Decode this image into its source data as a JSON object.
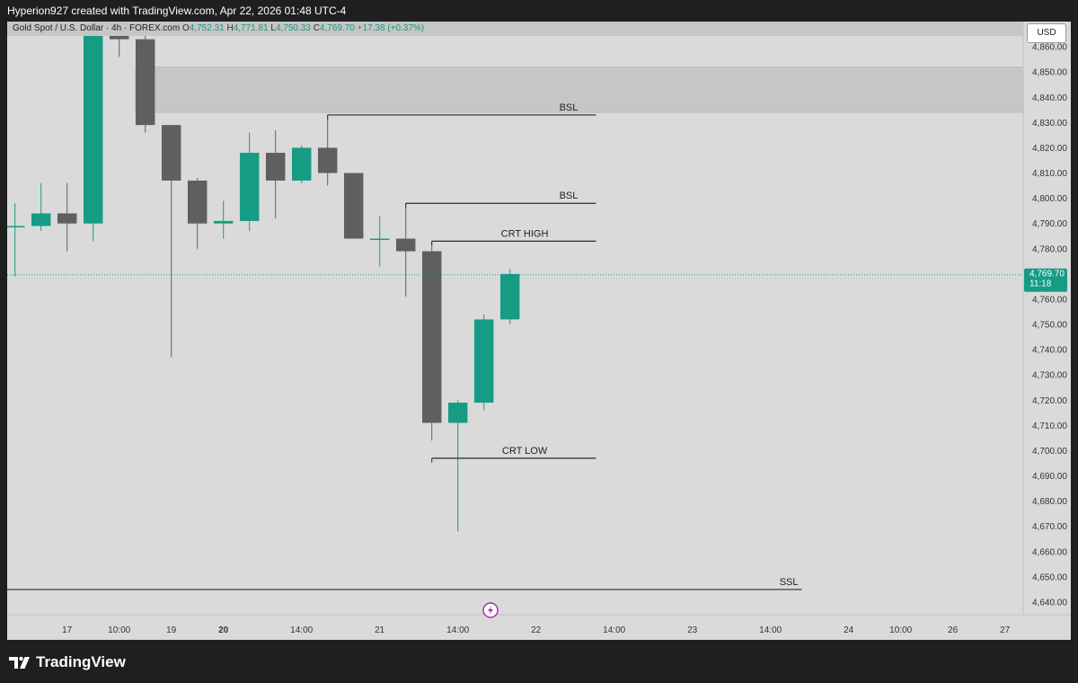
{
  "header": {
    "credit": "Hyperion927 created with TradingView.com, Apr 22, 2026 01:48 UTC-4"
  },
  "symbol_bar": {
    "title": "Gold Spot / U.S. Dollar · 4h · FOREX.com",
    "open_label": "O",
    "open": "4,752.31",
    "high_label": "H",
    "high": "4,771.81",
    "low_label": "L",
    "low": "4,750.33",
    "close_label": "C",
    "close": "4,769.70",
    "change": "+17.38 (+0.37%)"
  },
  "currency_button": "USD",
  "last_price": {
    "value": "4,769.70",
    "countdown": "11:18"
  },
  "brand": {
    "name": "TradingView"
  },
  "colors": {
    "bull": "#169c84",
    "bear": "#5f5f5f",
    "background": "#dadada",
    "zone": "#c6c6c6",
    "line": "#2b2b2b",
    "icon_accent": "#a32fa8"
  },
  "chart_data": {
    "type": "candlestick",
    "title": "Gold Spot / U.S. Dollar",
    "timeframe": "4h",
    "source": "FOREX.com",
    "currency": "USD",
    "ylim": [
      4635,
      4870
    ],
    "y_ticks": [
      4640,
      4650,
      4660,
      4670,
      4680,
      4690,
      4700,
      4710,
      4720,
      4730,
      4740,
      4750,
      4760,
      4770,
      4780,
      4790,
      4800,
      4810,
      4820,
      4830,
      4840,
      4850,
      4860
    ],
    "y_tick_labels": [
      "4,640.00",
      "4,650.00",
      "4,660.00",
      "4,670.00",
      "4,680.00",
      "4,690.00",
      "4,700.00",
      "4,710.00",
      "4,720.00",
      "4,730.00",
      "4,740.00",
      "4,750.00",
      "4,760.00",
      "4,770.00",
      "4,780.00",
      "4,790.00",
      "4,800.00",
      "4,810.00",
      "4,820.00",
      "4,830.00",
      "4,840.00",
      "4,850.00",
      "4,860.00"
    ],
    "x_range": [
      -0.3,
      38.7
    ],
    "x_ticks": [
      {
        "index": 2,
        "label": "17",
        "bold": false
      },
      {
        "index": 4,
        "label": "10:00",
        "bold": false
      },
      {
        "index": 6,
        "label": "19",
        "bold": false
      },
      {
        "index": 8,
        "label": "20",
        "bold": true
      },
      {
        "index": 11,
        "label": "14:00",
        "bold": false
      },
      {
        "index": 14,
        "label": "21",
        "bold": false
      },
      {
        "index": 17,
        "label": "14:00",
        "bold": false
      },
      {
        "index": 20,
        "label": "22",
        "bold": false
      },
      {
        "index": 23,
        "label": "14:00",
        "bold": false
      },
      {
        "index": 26,
        "label": "23",
        "bold": false
      },
      {
        "index": 29,
        "label": "14:00",
        "bold": false
      },
      {
        "index": 32,
        "label": "24",
        "bold": false
      },
      {
        "index": 34,
        "label": "10:00",
        "bold": false
      },
      {
        "index": 36,
        "label": "26",
        "bold": false
      },
      {
        "index": 38,
        "label": "27",
        "bold": false
      }
    ],
    "candles": [
      {
        "o": 4789,
        "h": 4798,
        "l": 4769,
        "c": 4789
      },
      {
        "o": 4789,
        "h": 4806,
        "l": 4787,
        "c": 4794
      },
      {
        "o": 4794,
        "h": 4806,
        "l": 4779,
        "c": 4790
      },
      {
        "o": 4790,
        "h": 4885,
        "l": 4783,
        "c": 4885
      },
      {
        "o": 4885,
        "h": 4890,
        "l": 4856,
        "c": 4863
      },
      {
        "o": 4863,
        "h": 4866,
        "l": 4826,
        "c": 4829
      },
      {
        "o": 4829,
        "h": 4829,
        "l": 4737,
        "c": 4807
      },
      {
        "o": 4807,
        "h": 4808,
        "l": 4780,
        "c": 4790
      },
      {
        "o": 4790,
        "h": 4799,
        "l": 4784,
        "c": 4791
      },
      {
        "o": 4791,
        "h": 4826,
        "l": 4787,
        "c": 4818
      },
      {
        "o": 4818,
        "h": 4827,
        "l": 4792,
        "c": 4807
      },
      {
        "o": 4807,
        "h": 4821,
        "l": 4806,
        "c": 4820
      },
      {
        "o": 4820,
        "h": 4833,
        "l": 4805,
        "c": 4810
      },
      {
        "o": 4810,
        "h": 4810,
        "l": 4784,
        "c": 4784
      },
      {
        "o": 4784,
        "h": 4793,
        "l": 4773,
        "c": 4784
      },
      {
        "o": 4784,
        "h": 4798,
        "l": 4761,
        "c": 4779
      },
      {
        "o": 4779,
        "h": 4783,
        "l": 4704,
        "c": 4711
      },
      {
        "o": 4711,
        "h": 4720,
        "l": 4668,
        "c": 4719
      },
      {
        "o": 4719,
        "h": 4754,
        "l": 4716,
        "c": 4752
      },
      {
        "o": 4752,
        "h": 4772,
        "l": 4750,
        "c": 4770
      }
    ],
    "last_price": 4769.7,
    "zones": [
      {
        "from": 4834,
        "to": 4852,
        "start_index": 5
      }
    ],
    "annotations": [
      {
        "label": "BSL",
        "price": 4833,
        "start_index": 12,
        "end_index": 22.3
      },
      {
        "label": "BSL",
        "price": 4798,
        "start_index": 15,
        "end_index": 22.3
      },
      {
        "label": "CRT HIGH",
        "price": 4783,
        "start_index": 16,
        "end_index": 22.3
      },
      {
        "label": "CRT LOW",
        "price": 4697,
        "start_index": 16,
        "end_index": 22.3
      },
      {
        "label": "SSL",
        "price": 4645,
        "start_index": -0.3,
        "end_index": 30.2
      }
    ]
  }
}
